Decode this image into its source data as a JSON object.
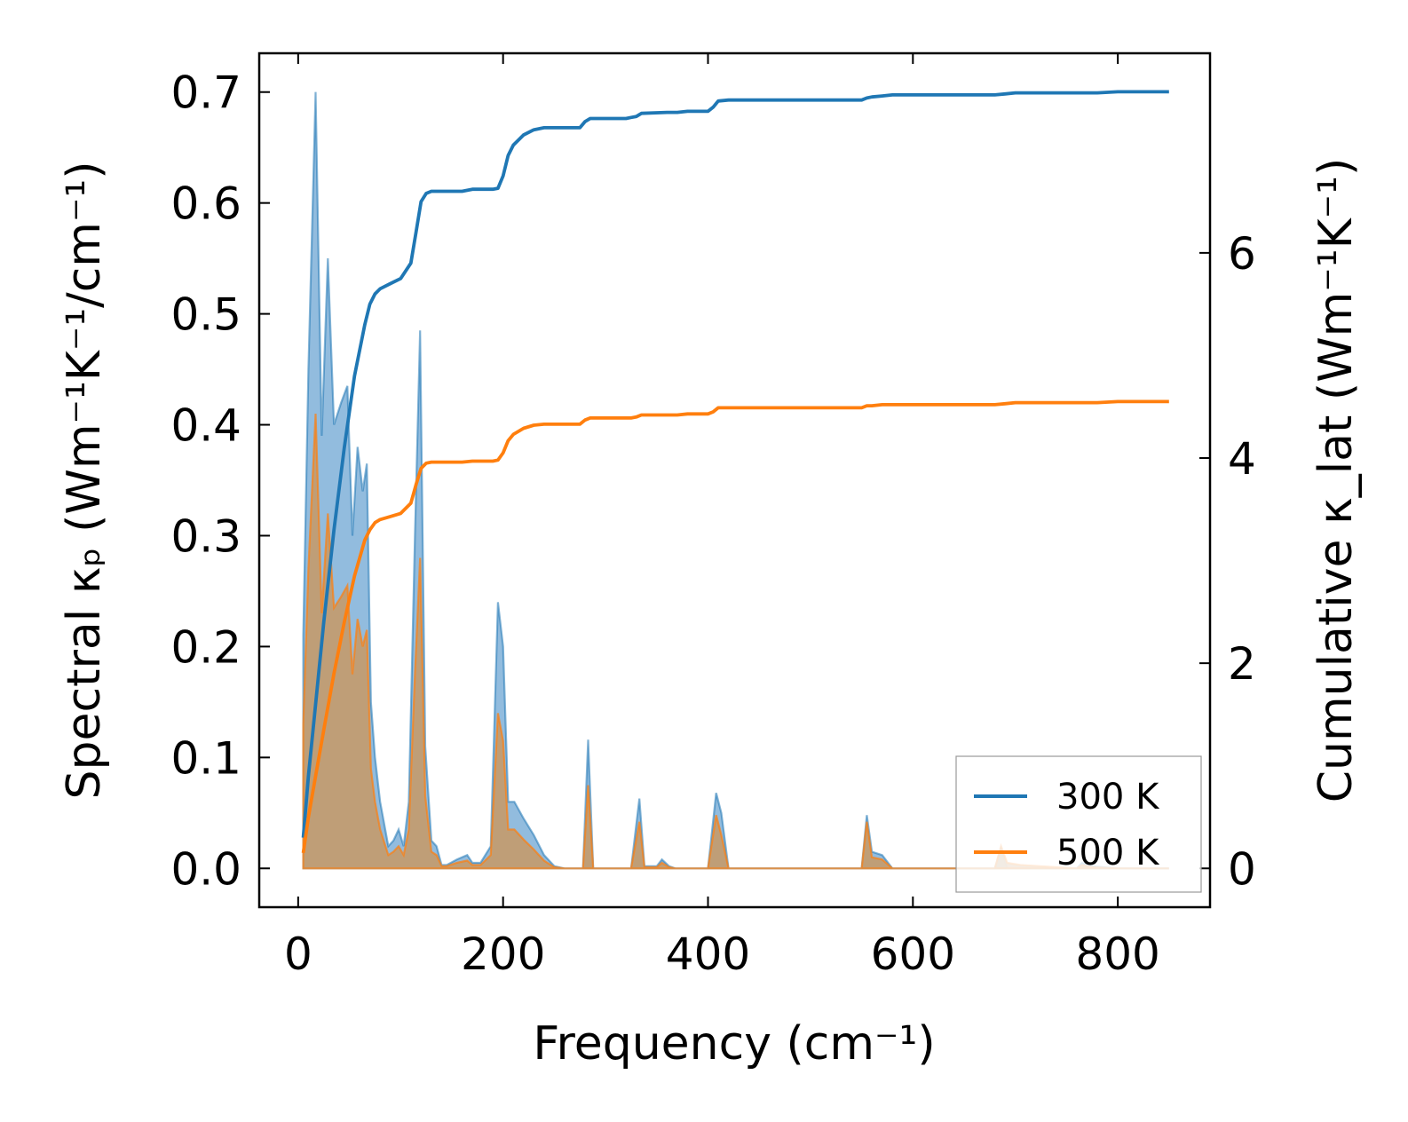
{
  "chart_data": {
    "type": "area+line",
    "xlabel": "Frequency (cm⁻¹)",
    "ylabel_left": "Spectral κₚ (Wm⁻¹K⁻¹/cm⁻¹)",
    "ylabel_right": "Cumulative κ_lat (Wm⁻¹K⁻¹)",
    "xlim": [
      -38,
      890
    ],
    "ylim_left": [
      -0.035,
      0.735
    ],
    "ylim_right": [
      -0.3784,
      7.9459
    ],
    "xticks": [
      0,
      200,
      400,
      600,
      800
    ],
    "xtick_labels": [
      "0",
      "200",
      "400",
      "600",
      "800"
    ],
    "yticks_left": [
      0.0,
      0.1,
      0.2,
      0.3,
      0.4,
      0.5,
      0.6,
      0.7
    ],
    "ytick_labels_left": [
      "0.0",
      "0.1",
      "0.2",
      "0.3",
      "0.4",
      "0.5",
      "0.6",
      "0.7"
    ],
    "yticks_right": [
      0,
      2,
      4,
      6
    ],
    "ytick_labels_right": [
      "0",
      "2",
      "4",
      "6"
    ],
    "legend": {
      "placement": "lower-right",
      "entries": [
        "300 K",
        "500 K"
      ]
    },
    "colors": {
      "300 K": "#1f77b4",
      "500 K": "#ff7f0e",
      "fill_300": "#7fb0d8",
      "fill_500": "#c49a6c"
    },
    "series": [
      {
        "name": "300 K",
        "axis": "left",
        "kind": "spectral_fill",
        "x": [
          5,
          10,
          17,
          23,
          29,
          35,
          42,
          48,
          53,
          58,
          63,
          67,
          71,
          75,
          80,
          88,
          93,
          98,
          103,
          108,
          114,
          119,
          124,
          130,
          135,
          140,
          145,
          155,
          165,
          170,
          178,
          188,
          195,
          200,
          205,
          211,
          220,
          230,
          240,
          250,
          260,
          270,
          278,
          283,
          288,
          300,
          325,
          333,
          338,
          350,
          355,
          362,
          368,
          380,
          400,
          408,
          413,
          420,
          540,
          550,
          555,
          560,
          570,
          580,
          660,
          680,
          686,
          692,
          705,
          760,
          765,
          775,
          800,
          850
        ],
        "values": [
          0.21,
          0.45,
          0.7,
          0.39,
          0.55,
          0.4,
          0.42,
          0.435,
          0.3,
          0.38,
          0.34,
          0.365,
          0.15,
          0.1,
          0.06,
          0.02,
          0.025,
          0.035,
          0.02,
          0.06,
          0.3,
          0.485,
          0.11,
          0.025,
          0.02,
          0.003,
          0.003,
          0.008,
          0.012,
          0.005,
          0.005,
          0.02,
          0.24,
          0.2,
          0.06,
          0.06,
          0.045,
          0.03,
          0.012,
          0.002,
          0.0,
          0.0,
          0.0,
          0.116,
          0.0,
          0.0,
          0.0,
          0.063,
          0.002,
          0.002,
          0.008,
          0.002,
          0.0,
          0.0,
          0.0,
          0.068,
          0.05,
          0.0,
          0.0,
          0.0,
          0.048,
          0.015,
          0.012,
          0.0,
          0.0,
          0.0,
          0.018,
          0.0,
          0.0,
          0.0,
          0.005,
          0.002,
          0.0,
          0.0
        ]
      },
      {
        "name": "500 K",
        "axis": "left",
        "kind": "spectral_fill",
        "x": [
          5,
          10,
          17,
          23,
          29,
          35,
          42,
          48,
          53,
          58,
          63,
          67,
          71,
          75,
          80,
          88,
          93,
          98,
          103,
          108,
          114,
          119,
          124,
          130,
          135,
          140,
          145,
          155,
          165,
          170,
          178,
          188,
          195,
          200,
          205,
          211,
          220,
          230,
          240,
          250,
          260,
          270,
          278,
          283,
          288,
          300,
          325,
          333,
          338,
          350,
          355,
          362,
          368,
          380,
          400,
          408,
          413,
          420,
          540,
          550,
          555,
          560,
          570,
          580,
          660,
          680,
          686,
          692,
          705,
          760,
          765,
          775,
          800,
          850
        ],
        "values": [
          0.13,
          0.27,
          0.41,
          0.23,
          0.32,
          0.235,
          0.245,
          0.255,
          0.175,
          0.225,
          0.2,
          0.215,
          0.09,
          0.06,
          0.035,
          0.012,
          0.015,
          0.02,
          0.012,
          0.035,
          0.175,
          0.28,
          0.065,
          0.015,
          0.012,
          0.002,
          0.002,
          0.005,
          0.007,
          0.003,
          0.003,
          0.012,
          0.14,
          0.115,
          0.035,
          0.035,
          0.026,
          0.017,
          0.007,
          0.001,
          0.0,
          0.0,
          0.0,
          0.075,
          0.0,
          0.0,
          0.0,
          0.042,
          0.001,
          0.001,
          0.005,
          0.001,
          0.0,
          0.0,
          0.0,
          0.048,
          0.03,
          0.0,
          0.0,
          0.0,
          0.042,
          0.01,
          0.008,
          0.0,
          0.0,
          0.0,
          0.02,
          0.005,
          0.003,
          0.0,
          0.003,
          0.001,
          0.0,
          0.0
        ]
      },
      {
        "name": "300 K",
        "axis": "right",
        "kind": "cumulative_line",
        "x": [
          5,
          10,
          17,
          25,
          35,
          45,
          55,
          65,
          70,
          75,
          80,
          90,
          100,
          110,
          115,
          120,
          125,
          130,
          140,
          160,
          170,
          190,
          195,
          200,
          205,
          210,
          220,
          230,
          240,
          260,
          270,
          275,
          280,
          285,
          300,
          320,
          325,
          330,
          335,
          360,
          370,
          380,
          400,
          405,
          410,
          420,
          540,
          550,
          555,
          560,
          570,
          580,
          680,
          690,
          700,
          760,
          780,
          800,
          850
        ],
        "values": [
          0.3,
          0.9,
          1.6,
          2.4,
          3.3,
          4.1,
          4.8,
          5.3,
          5.5,
          5.6,
          5.65,
          5.7,
          5.75,
          5.9,
          6.2,
          6.5,
          6.58,
          6.6,
          6.6,
          6.6,
          6.62,
          6.62,
          6.63,
          6.75,
          6.95,
          7.05,
          7.15,
          7.2,
          7.22,
          7.22,
          7.22,
          7.22,
          7.28,
          7.31,
          7.31,
          7.31,
          7.32,
          7.33,
          7.36,
          7.37,
          7.37,
          7.38,
          7.38,
          7.42,
          7.48,
          7.49,
          7.49,
          7.49,
          7.51,
          7.52,
          7.53,
          7.54,
          7.54,
          7.55,
          7.56,
          7.56,
          7.56,
          7.57,
          7.57
        ]
      },
      {
        "name": "500 K",
        "axis": "right",
        "kind": "cumulative_line",
        "x": [
          5,
          10,
          17,
          25,
          35,
          45,
          55,
          65,
          70,
          75,
          80,
          90,
          100,
          110,
          115,
          120,
          125,
          130,
          140,
          160,
          170,
          190,
          195,
          200,
          205,
          210,
          220,
          230,
          240,
          260,
          270,
          275,
          280,
          285,
          300,
          320,
          325,
          330,
          335,
          360,
          370,
          380,
          400,
          405,
          410,
          420,
          540,
          550,
          555,
          560,
          570,
          580,
          680,
          690,
          700,
          760,
          780,
          800,
          850
        ],
        "values": [
          0.15,
          0.5,
          0.9,
          1.35,
          1.9,
          2.4,
          2.85,
          3.2,
          3.3,
          3.37,
          3.4,
          3.43,
          3.46,
          3.56,
          3.74,
          3.9,
          3.95,
          3.96,
          3.96,
          3.96,
          3.97,
          3.97,
          3.98,
          4.05,
          4.17,
          4.23,
          4.29,
          4.32,
          4.33,
          4.33,
          4.33,
          4.33,
          4.37,
          4.39,
          4.39,
          4.39,
          4.39,
          4.4,
          4.42,
          4.42,
          4.42,
          4.43,
          4.43,
          4.45,
          4.49,
          4.49,
          4.49,
          4.49,
          4.51,
          4.51,
          4.52,
          4.52,
          4.52,
          4.53,
          4.54,
          4.54,
          4.54,
          4.55,
          4.55
        ]
      }
    ]
  }
}
